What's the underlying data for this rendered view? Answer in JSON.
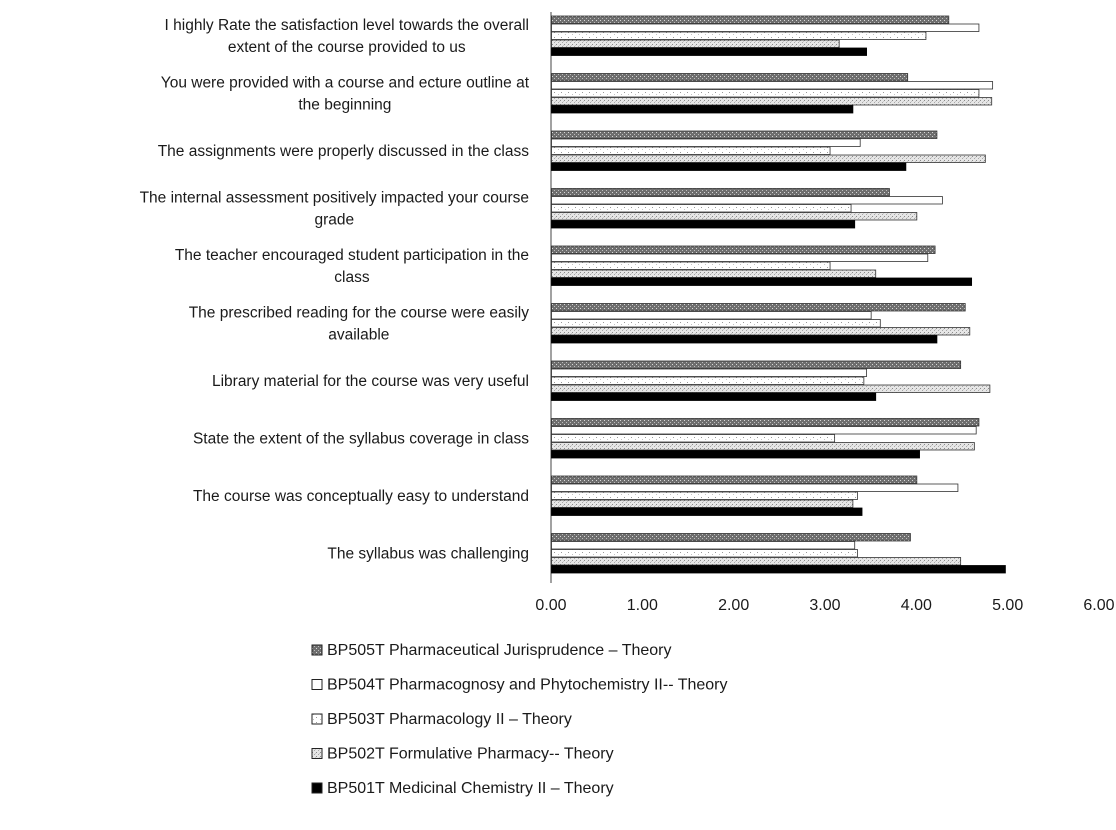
{
  "chart_data": {
    "type": "bar",
    "orientation": "horizontal",
    "categories": [
      [
        "I highly Rate the satisfaction level towards the overall",
        "extent of the course provided to us"
      ],
      [
        "You were provided with a course and ecture outline at",
        "the beginning"
      ],
      [
        "The assignments were properly discussed in the class"
      ],
      [
        "The internal assessment positively impacted your course",
        "grade"
      ],
      [
        "The teacher encouraged student participation in the",
        "class"
      ],
      [
        "The prescribed reading for the course were easily",
        "available"
      ],
      [
        "Library material for the course was very useful"
      ],
      [
        "State the extent of the syllabus coverage in class"
      ],
      [
        "The course was conceptually easy to understand"
      ],
      [
        "The syllabus was challenging"
      ]
    ],
    "series": [
      {
        "name": "BP505T Pharmaceutical Jurisprudence – Theory",
        "color": "#8a8a8a",
        "pattern": "dots-dark",
        "values": [
          4.35,
          3.9,
          4.22,
          3.7,
          4.2,
          4.53,
          4.48,
          4.68,
          4.0,
          3.93
        ]
      },
      {
        "name": "BP504T Pharmacognosy and Phytochemistry II-- Theory",
        "color": "#ffffff",
        "pattern": "white",
        "values": [
          4.68,
          4.83,
          3.38,
          4.28,
          4.12,
          3.5,
          3.45,
          4.65,
          4.45,
          3.32
        ]
      },
      {
        "name": "BP503T Pharmacology II – Theory",
        "color": "#ffffff",
        "pattern": "white-speckle",
        "values": [
          4.1,
          4.68,
          3.05,
          3.28,
          3.05,
          3.6,
          3.42,
          3.1,
          3.35,
          3.35
        ]
      },
      {
        "name": "BP502T Formulative Pharmacy-- Theory",
        "color": "#b5b5b5",
        "pattern": "dots-light",
        "values": [
          3.15,
          4.82,
          4.75,
          4.0,
          3.55,
          4.58,
          4.8,
          4.63,
          3.3,
          4.48
        ]
      },
      {
        "name": "BP501T Medicinal Chemistry II – Theory",
        "color": "#000000",
        "pattern": "solid",
        "values": [
          3.45,
          3.3,
          3.88,
          3.32,
          4.6,
          4.22,
          3.55,
          4.03,
          3.4,
          4.97
        ]
      }
    ],
    "xlim": [
      0,
      6
    ],
    "xticks": [
      0,
      1,
      2,
      3,
      4,
      5,
      6
    ],
    "tick_labels": [
      "0.00",
      "1.00",
      "2.00",
      "3.00",
      "4.00",
      "5.00",
      "6.00"
    ],
    "grid": false,
    "legend_position": "bottom",
    "title": "",
    "xlabel": "",
    "ylabel": ""
  }
}
